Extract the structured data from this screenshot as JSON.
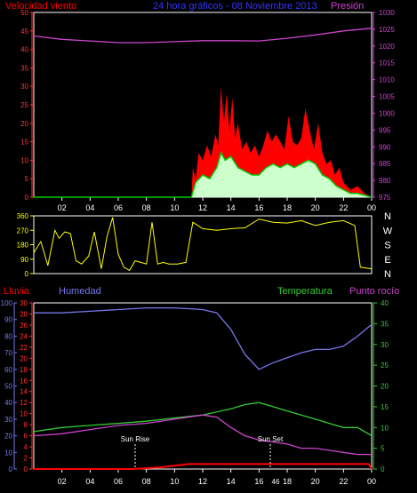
{
  "header": {
    "left_label": "Velocidad viento",
    "title": "24 hora gráficos - 08 Noviembre 2013",
    "right_label": "Presión"
  },
  "lower_header": {
    "rain": "Lluvia",
    "humidity": "Humedad",
    "temperature": "Temperatura",
    "dewpoint": "Punto rocío"
  },
  "annotations": {
    "sun_rise": "Sun Rise",
    "sun_set": "Sun Set",
    "sun_set_extra": "46"
  },
  "colors": {
    "wind_gust": "#ff0000",
    "wind_avg": "#00cc00",
    "wind_fill": "#ccffcc",
    "pressure": "#cc44cc",
    "direction": "#ffff00",
    "rain": "#ff0000",
    "humidity": "#7777ee",
    "temperature": "#33cc33",
    "dewpoint": "#cc44cc",
    "axis_left": "#ff3333",
    "axis_right": "#cc44cc",
    "axis_humidity": "#7777ee",
    "axis_temp": "#33cc33",
    "title": "#3333ff"
  },
  "chart_data": [
    {
      "type": "area",
      "ylim_left": [
        0,
        50
      ],
      "ylim_right": [
        975,
        1030
      ],
      "yticks_left": [
        "0",
        "5",
        "10",
        "15",
        "20",
        "25",
        "30",
        "35",
        "40",
        "45",
        "50"
      ],
      "yticks_right": [
        "975",
        "980",
        "985",
        "990",
        "995",
        "1000",
        "1005",
        "1010",
        "1015",
        "1020",
        "1025",
        "1030"
      ],
      "xticks": [
        "02",
        "04",
        "06",
        "08",
        "10",
        "12",
        "14",
        "16",
        "18",
        "20",
        "22",
        "00"
      ],
      "pressure": [
        [
          0,
          1023
        ],
        [
          2,
          1022
        ],
        [
          4,
          1021.5
        ],
        [
          6,
          1021
        ],
        [
          8,
          1021
        ],
        [
          10,
          1021.3
        ],
        [
          12,
          1021.6
        ],
        [
          14,
          1021.6
        ],
        [
          16,
          1021.5
        ],
        [
          18,
          1022.3
        ],
        [
          20,
          1023.3
        ],
        [
          22,
          1024.5
        ],
        [
          24,
          1025.3
        ]
      ],
      "gust": [
        [
          0,
          0
        ],
        [
          11.2,
          0
        ],
        [
          11.3,
          8
        ],
        [
          11.5,
          5
        ],
        [
          11.7,
          12
        ],
        [
          12,
          10
        ],
        [
          12.3,
          14
        ],
        [
          12.6,
          11
        ],
        [
          12.9,
          17
        ],
        [
          13.1,
          14
        ],
        [
          13.3,
          30
        ],
        [
          13.5,
          20
        ],
        [
          13.7,
          28
        ],
        [
          13.9,
          18
        ],
        [
          14.1,
          27
        ],
        [
          14.3,
          16
        ],
        [
          14.5,
          20
        ],
        [
          14.8,
          13
        ],
        [
          15.1,
          15
        ],
        [
          15.4,
          12
        ],
        [
          15.7,
          14
        ],
        [
          16,
          11
        ],
        [
          16.3,
          14
        ],
        [
          16.6,
          18
        ],
        [
          16.9,
          15
        ],
        [
          17.2,
          17
        ],
        [
          17.5,
          15
        ],
        [
          17.8,
          13
        ],
        [
          18.1,
          22
        ],
        [
          18.4,
          15
        ],
        [
          18.7,
          14
        ],
        [
          19,
          16
        ],
        [
          19.3,
          24
        ],
        [
          19.6,
          18
        ],
        [
          19.9,
          13
        ],
        [
          20.2,
          20
        ],
        [
          20.5,
          12
        ],
        [
          20.8,
          9
        ],
        [
          21.1,
          10
        ],
        [
          21.4,
          6
        ],
        [
          21.7,
          8
        ],
        [
          22,
          4
        ],
        [
          22.5,
          2
        ],
        [
          23,
          3
        ],
        [
          23.5,
          1
        ],
        [
          24,
          0
        ]
      ],
      "average": [
        [
          0,
          0
        ],
        [
          11.2,
          0
        ],
        [
          11.5,
          4
        ],
        [
          12,
          6
        ],
        [
          12.5,
          5
        ],
        [
          13,
          8
        ],
        [
          13.3,
          12
        ],
        [
          13.6,
          10
        ],
        [
          14,
          11
        ],
        [
          14.5,
          8
        ],
        [
          15,
          7
        ],
        [
          15.5,
          6
        ],
        [
          16,
          6
        ],
        [
          16.5,
          8
        ],
        [
          17,
          9
        ],
        [
          17.5,
          8
        ],
        [
          18,
          9
        ],
        [
          18.5,
          8
        ],
        [
          19,
          9
        ],
        [
          19.5,
          10
        ],
        [
          20,
          9
        ],
        [
          20.5,
          6
        ],
        [
          21,
          5
        ],
        [
          21.5,
          3
        ],
        [
          22,
          2
        ],
        [
          22.5,
          1
        ],
        [
          23,
          1
        ],
        [
          24,
          0
        ]
      ],
      "xlim": [
        0,
        24
      ]
    },
    {
      "type": "scatter",
      "ylim": [
        0,
        360
      ],
      "yticks": [
        "0",
        "90",
        "180",
        "270",
        "360"
      ],
      "compass": [
        "N",
        "W",
        "S",
        "E",
        "N"
      ],
      "direction": [
        [
          0,
          130
        ],
        [
          0.5,
          200
        ],
        [
          1.0,
          50
        ],
        [
          1.5,
          270
        ],
        [
          1.8,
          220
        ],
        [
          2.2,
          260
        ],
        [
          2.6,
          250
        ],
        [
          3.0,
          80
        ],
        [
          3.4,
          60
        ],
        [
          3.9,
          110
        ],
        [
          4.3,
          260
        ],
        [
          4.8,
          30
        ],
        [
          5.2,
          230
        ],
        [
          5.6,
          350
        ],
        [
          6.0,
          120
        ],
        [
          6.4,
          40
        ],
        [
          6.8,
          20
        ],
        [
          7.2,
          80
        ],
        [
          7.6,
          70
        ],
        [
          8.0,
          60
        ],
        [
          8.4,
          320
        ],
        [
          8.8,
          60
        ],
        [
          9.2,
          70
        ],
        [
          9.6,
          60
        ],
        [
          10.2,
          60
        ],
        [
          10.8,
          70
        ],
        [
          11.3,
          320
        ],
        [
          12,
          280
        ],
        [
          13,
          270
        ],
        [
          14,
          280
        ],
        [
          15,
          285
        ],
        [
          16,
          340
        ],
        [
          17,
          320
        ],
        [
          18,
          315
        ],
        [
          19,
          330
        ],
        [
          20,
          300
        ],
        [
          21,
          320
        ],
        [
          22,
          330
        ],
        [
          22.8,
          300
        ],
        [
          23.2,
          40
        ],
        [
          24,
          30
        ]
      ],
      "xlim": [
        0,
        24
      ]
    },
    {
      "type": "line",
      "ylim_rain": [
        0,
        100
      ],
      "ylim_hum": [
        0,
        30
      ],
      "ylim_temp": [
        0,
        40
      ],
      "yticks_rain": [
        "0",
        "10",
        "20",
        "30",
        "40",
        "50",
        "60",
        "70",
        "80",
        "90",
        "100"
      ],
      "yticks_hum": [
        "0",
        "2",
        "4",
        "6",
        "8",
        "10",
        "12",
        "14",
        "16",
        "18",
        "20",
        "22",
        "24",
        "26",
        "28",
        "30"
      ],
      "yticks_temp": [
        "0",
        "5",
        "10",
        "15",
        "20",
        "25",
        "30",
        "35",
        "40"
      ],
      "xticks": [
        "02",
        "04",
        "06",
        "08",
        "10",
        "12",
        "14",
        "16",
        "18",
        "20",
        "22",
        "00"
      ],
      "humidity": [
        [
          0,
          94
        ],
        [
          2,
          94
        ],
        [
          4,
          95
        ],
        [
          6,
          96
        ],
        [
          8,
          97
        ],
        [
          10,
          97
        ],
        [
          12,
          96
        ],
        [
          13,
          94
        ],
        [
          14,
          84
        ],
        [
          15,
          69
        ],
        [
          16,
          60
        ],
        [
          17,
          64
        ],
        [
          18,
          67
        ],
        [
          19,
          70
        ],
        [
          20,
          72
        ],
        [
          21,
          72
        ],
        [
          22,
          74
        ],
        [
          23,
          80
        ],
        [
          24,
          87
        ]
      ],
      "temperature": [
        [
          0,
          9
        ],
        [
          2,
          10
        ],
        [
          4,
          10.5
        ],
        [
          6,
          11
        ],
        [
          8,
          11.5
        ],
        [
          10,
          12.3
        ],
        [
          12,
          13
        ],
        [
          14,
          14.5
        ],
        [
          15,
          15.5
        ],
        [
          16,
          16
        ],
        [
          17,
          15
        ],
        [
          18,
          14
        ],
        [
          19,
          13
        ],
        [
          20,
          12
        ],
        [
          21,
          11
        ],
        [
          22,
          10
        ],
        [
          23,
          10
        ],
        [
          24,
          8
        ]
      ],
      "dewpoint": [
        [
          0,
          8
        ],
        [
          2,
          8.5
        ],
        [
          4,
          9.5
        ],
        [
          6,
          10.5
        ],
        [
          8,
          11
        ],
        [
          10,
          12
        ],
        [
          12,
          13
        ],
        [
          13,
          12.5
        ],
        [
          14,
          10
        ],
        [
          15,
          8
        ],
        [
          16,
          7
        ],
        [
          17,
          6.5
        ],
        [
          18,
          6
        ],
        [
          19,
          5
        ],
        [
          20,
          5
        ],
        [
          21,
          4.5
        ],
        [
          22,
          4
        ],
        [
          23,
          3.5
        ],
        [
          24,
          3.5
        ]
      ],
      "rain": [
        [
          0,
          0
        ],
        [
          7,
          0
        ],
        [
          9,
          1
        ],
        [
          10,
          2
        ],
        [
          11,
          3
        ],
        [
          12,
          3
        ],
        [
          14,
          3
        ],
        [
          16,
          3
        ],
        [
          18,
          3
        ],
        [
          20,
          3
        ],
        [
          22,
          3
        ],
        [
          23.8,
          3
        ],
        [
          24,
          0
        ]
      ],
      "sun_rise_x": 7.2,
      "sun_set_x": 16.8,
      "xlim": [
        0,
        24
      ]
    }
  ]
}
